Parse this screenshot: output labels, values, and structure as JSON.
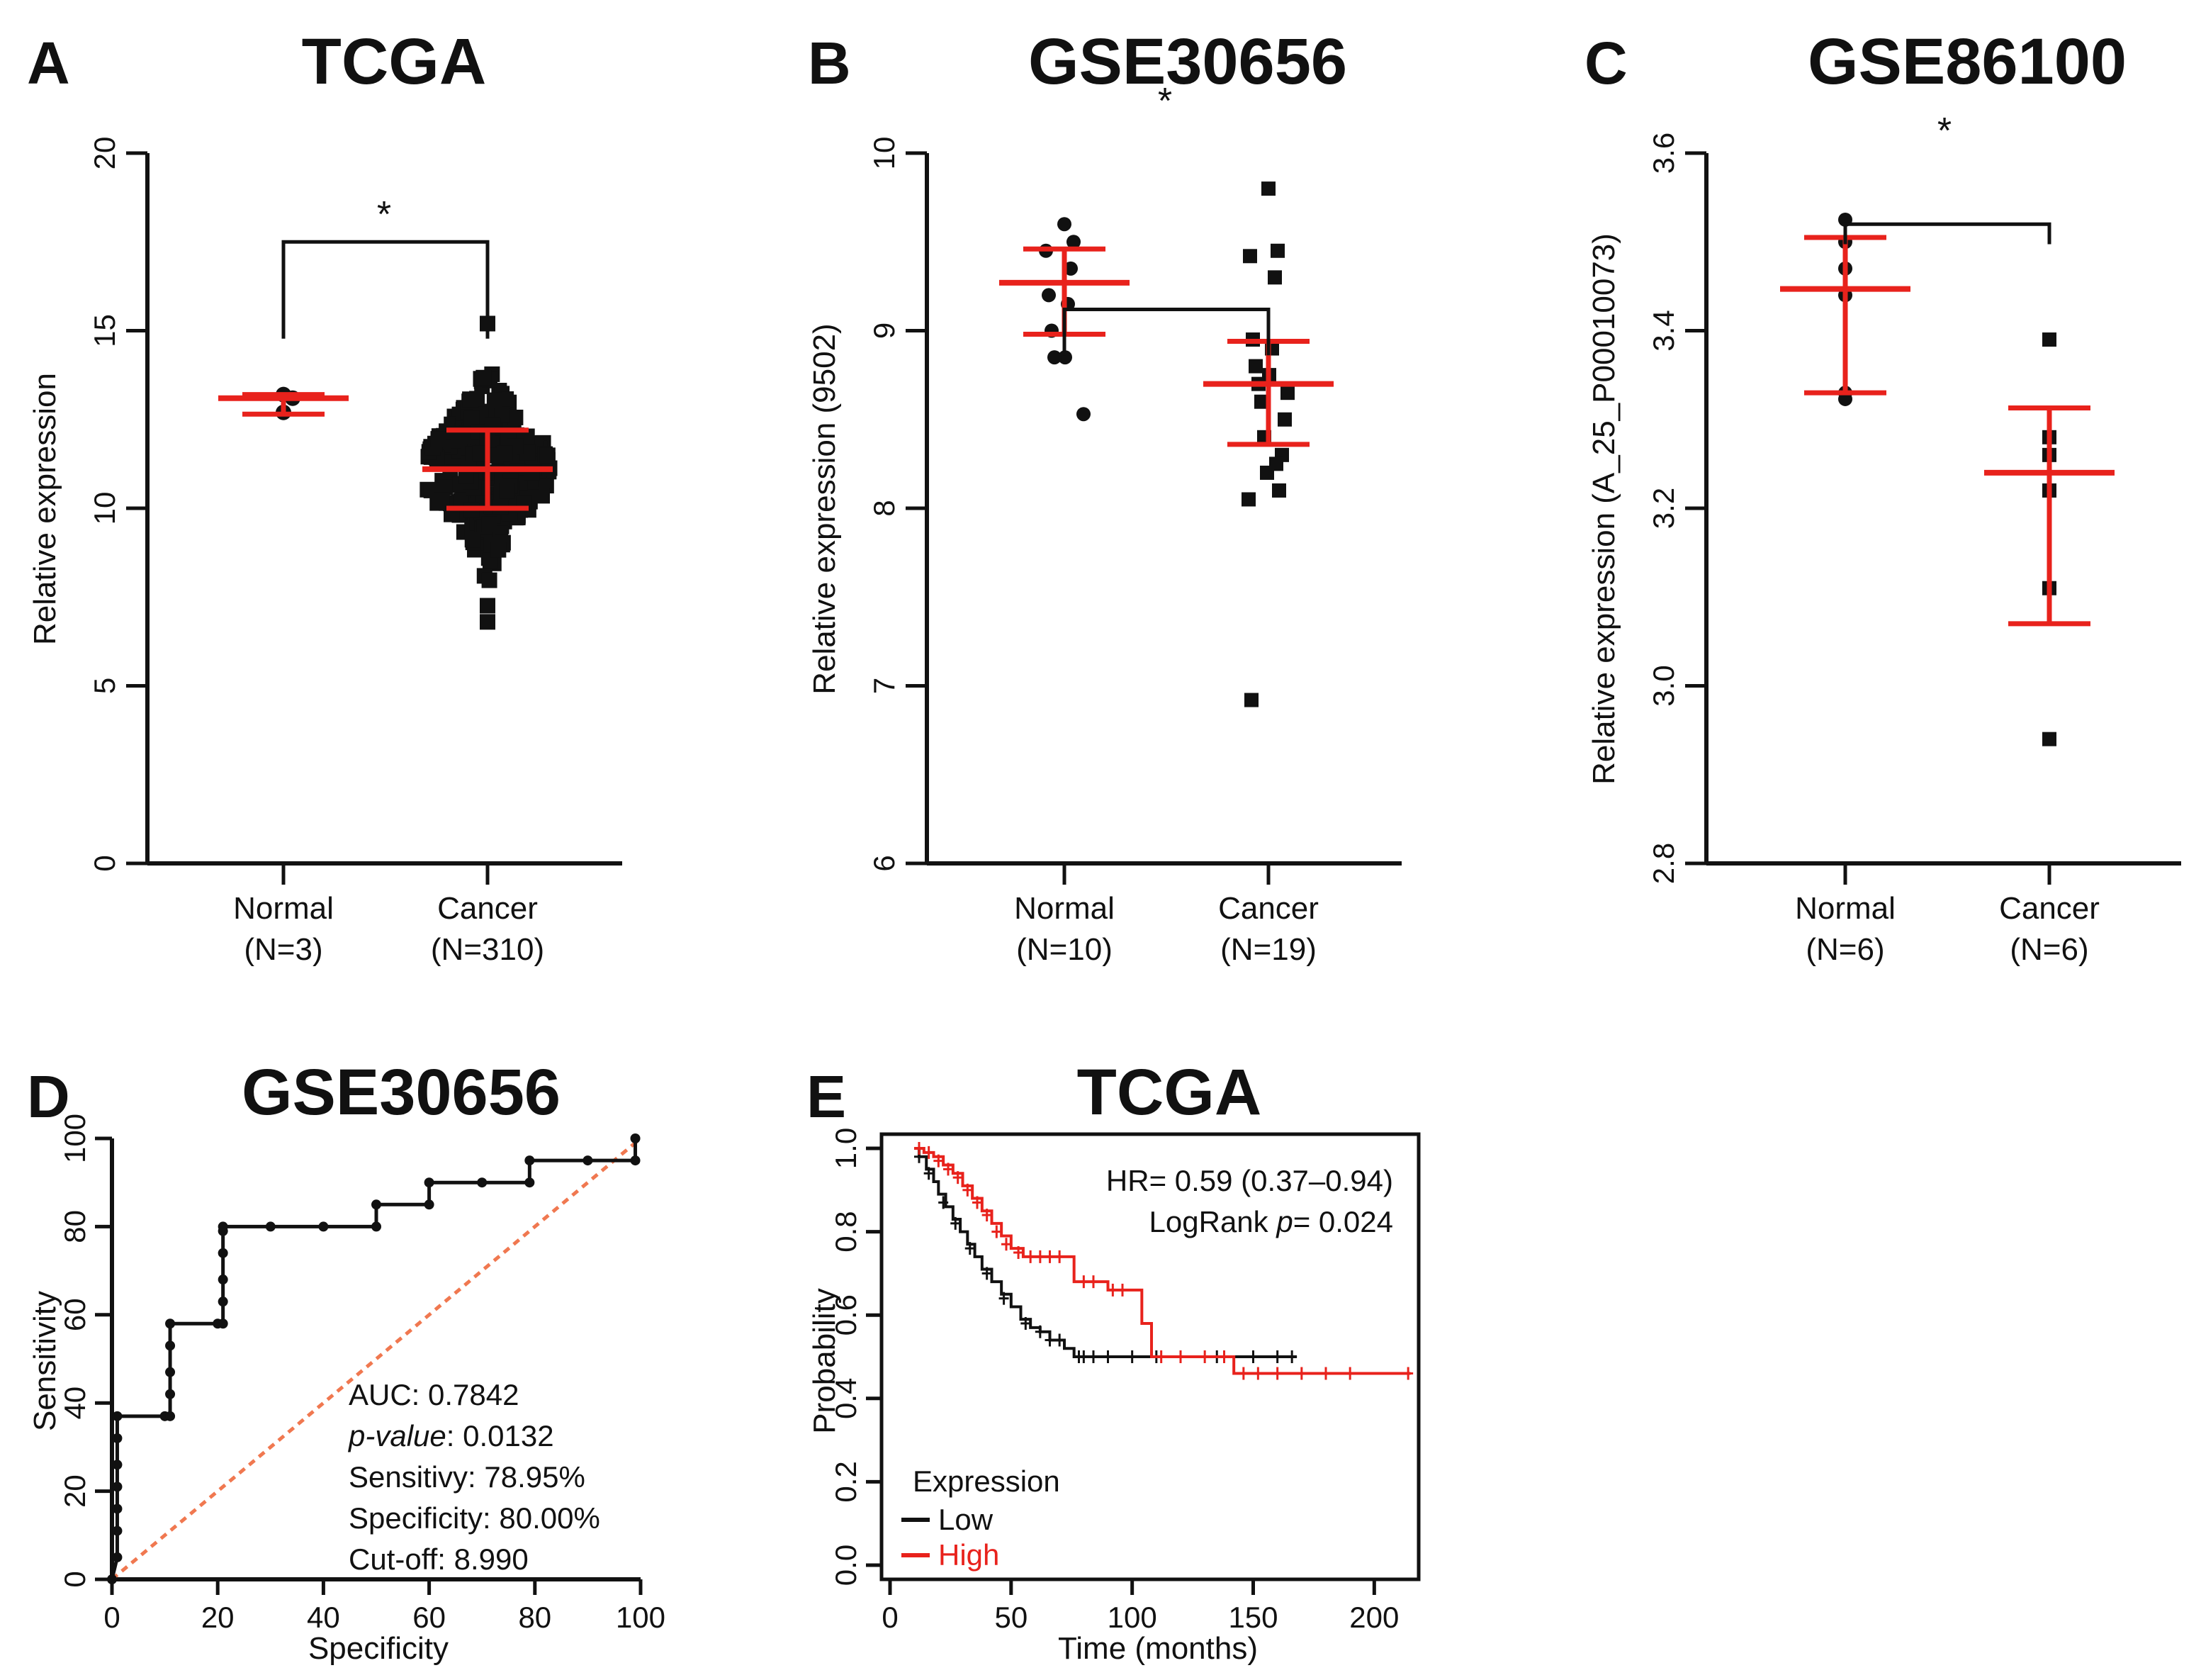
{
  "colors": {
    "black": "#111111",
    "red": "#e8221c",
    "diag": "#f07850"
  },
  "chart_data": [
    {
      "id": "A",
      "type": "scatter",
      "letter": "A",
      "title": "TCGA",
      "ylabel": "Relative expression",
      "ylim": [
        0,
        20
      ],
      "yticks": [
        "0",
        "5",
        "10",
        "15",
        "20"
      ],
      "ytick_values": [
        0,
        5,
        10,
        15,
        20
      ],
      "groups": [
        {
          "label": "Normal",
          "n": "(N=3)",
          "marker": "circle",
          "mean": 13.1,
          "lower": 12.65,
          "upper": 13.2,
          "points": [
            13.2,
            13.1,
            12.7
          ]
        },
        {
          "label": "Cancer",
          "n": "(N=310)",
          "marker": "square",
          "mean": 11.1,
          "lower": 10.0,
          "upper": 12.2,
          "dense": true,
          "n_points": 310,
          "min": 6.8,
          "max": 15.2
        }
      ],
      "significance": "*",
      "sig_level": 17.5
    },
    {
      "id": "B",
      "type": "scatter",
      "letter": "B",
      "title": "GSE30656",
      "ylabel": "Relative expression (9502)",
      "ylim": [
        6,
        10
      ],
      "yticks": [
        "6",
        "7",
        "8",
        "9",
        "10"
      ],
      "ytick_values": [
        6,
        7,
        8,
        9,
        10
      ],
      "groups": [
        {
          "label": "Normal",
          "n": "(N=10)",
          "marker": "circle",
          "mean": 9.27,
          "lower": 8.98,
          "upper": 9.46,
          "points": [
            9.6,
            9.5,
            9.45,
            9.35,
            9.2,
            9.15,
            9.0,
            8.85,
            8.85,
            8.53
          ]
        },
        {
          "label": "Cancer",
          "n": "(N=19)",
          "marker": "square",
          "mean": 8.7,
          "lower": 8.36,
          "upper": 8.94,
          "points": [
            9.8,
            9.45,
            9.42,
            9.3,
            8.95,
            8.9,
            8.8,
            8.75,
            8.7,
            8.65,
            8.6,
            8.5,
            8.4,
            8.3,
            8.2,
            8.1,
            8.05,
            8.25,
            6.92
          ]
        }
      ],
      "significance": "*",
      "sig_level": 9.12
    },
    {
      "id": "C",
      "type": "scatter",
      "letter": "C",
      "title": "GSE86100",
      "ylabel": "Relative expression (A_25_P00010073)",
      "ylim": [
        2.8,
        3.6
      ],
      "yticks": [
        "2.8",
        "3.0",
        "3.2",
        "3.4",
        "3.6"
      ],
      "ytick_values": [
        2.8,
        3.0,
        3.2,
        3.4,
        3.6
      ],
      "groups": [
        {
          "label": "Normal",
          "n": "(N=6)",
          "marker": "circle",
          "mean": 3.447,
          "lower": 3.33,
          "upper": 3.505,
          "points": [
            3.525,
            3.5,
            3.47,
            3.44,
            3.33,
            3.323
          ]
        },
        {
          "label": "Cancer",
          "n": "(N=6)",
          "marker": "square",
          "mean": 3.24,
          "lower": 3.07,
          "upper": 3.313,
          "points": [
            3.39,
            3.28,
            3.26,
            3.22,
            3.11,
            2.94
          ]
        }
      ],
      "significance": "*",
      "sig_level": 3.52
    },
    {
      "id": "D",
      "type": "line",
      "letter": "D",
      "title": "GSE30656",
      "xlabel": "Specificity",
      "ylabel": "Sensitivity",
      "xlim": [
        0,
        100
      ],
      "ylim": [
        0,
        100
      ],
      "xticks": [
        "0",
        "20",
        "40",
        "60",
        "80",
        "100"
      ],
      "xtick_values": [
        0,
        20,
        40,
        60,
        80,
        100
      ],
      "yticks": [
        "0",
        "20",
        "40",
        "60",
        "80",
        "100"
      ],
      "ytick_values": [
        0,
        20,
        40,
        60,
        80,
        100
      ],
      "curve": [
        [
          0,
          0
        ],
        [
          1,
          5
        ],
        [
          1,
          11
        ],
        [
          1,
          16
        ],
        [
          1,
          21
        ],
        [
          1,
          26
        ],
        [
          1,
          32
        ],
        [
          1,
          37
        ],
        [
          10,
          37
        ],
        [
          11,
          37
        ],
        [
          11,
          42
        ],
        [
          11,
          47
        ],
        [
          11,
          53
        ],
        [
          11,
          58
        ],
        [
          20,
          58
        ],
        [
          21,
          58
        ],
        [
          21,
          63
        ],
        [
          21,
          68
        ],
        [
          21,
          74
        ],
        [
          21,
          79
        ],
        [
          21,
          80
        ],
        [
          30,
          80
        ],
        [
          40,
          80
        ],
        [
          50,
          80
        ],
        [
          50,
          85
        ],
        [
          60,
          85
        ],
        [
          60,
          90
        ],
        [
          70,
          90
        ],
        [
          79,
          90
        ],
        [
          79,
          95
        ],
        [
          90,
          95
        ],
        [
          99,
          95
        ],
        [
          99,
          100
        ]
      ],
      "annotations": {
        "auc": "AUC: 0.7842",
        "pvalue_label": "p-value",
        "pvalue": ": 0.0132",
        "sensitivity": "Sensitivy: 78.95%",
        "specificity": "Specificity: 80.00%",
        "cutoff": "Cut-off: 8.990"
      }
    },
    {
      "id": "E",
      "type": "line",
      "letter": "E",
      "title": "TCGA",
      "xlabel": "Time (months)",
      "ylabel": "Probability",
      "xlim": [
        0,
        220
      ],
      "ylim": [
        0,
        1
      ],
      "xticks": [
        "0",
        "50",
        "100",
        "150",
        "200"
      ],
      "xtick_values": [
        0,
        50,
        100,
        150,
        200
      ],
      "yticks": [
        "0.0",
        "0.2",
        "0.4",
        "0.6",
        "0.8",
        "1.0"
      ],
      "ytick_values": [
        0,
        0.2,
        0.4,
        0.6,
        0.8,
        1.0
      ],
      "hr": "HR= 0.59 (0.37–0.94)",
      "logrank_label": "LogRank ",
      "logrank_p": "p",
      "logrank_value": "= 0.024",
      "legend_title": "Expression",
      "series": [
        {
          "name": "Low",
          "color": "#111111",
          "steps": [
            [
              10,
              1.0
            ],
            [
              12,
              0.98
            ],
            [
              15,
              0.95
            ],
            [
              18,
              0.92
            ],
            [
              20,
              0.89
            ],
            [
              23,
              0.86
            ],
            [
              26,
              0.83
            ],
            [
              29,
              0.8
            ],
            [
              32,
              0.77
            ],
            [
              35,
              0.74
            ],
            [
              38,
              0.71
            ],
            [
              42,
              0.68
            ],
            [
              46,
              0.65
            ],
            [
              50,
              0.62
            ],
            [
              54,
              0.59
            ],
            [
              58,
              0.57
            ],
            [
              62,
              0.56
            ],
            [
              66,
              0.54
            ],
            [
              72,
              0.52
            ],
            [
              76,
              0.5
            ],
            [
              168,
              0.5
            ]
          ],
          "censors": [
            [
              12,
              0.98
            ],
            [
              16,
              0.94
            ],
            [
              22,
              0.87
            ],
            [
              27,
              0.82
            ],
            [
              33,
              0.76
            ],
            [
              40,
              0.7
            ],
            [
              47,
              0.64
            ],
            [
              56,
              0.58
            ],
            [
              62,
              0.56
            ],
            [
              66,
              0.54
            ],
            [
              70,
              0.54
            ],
            [
              78,
              0.5
            ],
            [
              80,
              0.5
            ],
            [
              84,
              0.5
            ],
            [
              90,
              0.5
            ],
            [
              100,
              0.5
            ],
            [
              110,
              0.5
            ],
            [
              120,
              0.5
            ],
            [
              135,
              0.5
            ],
            [
              150,
              0.5
            ],
            [
              160,
              0.5
            ],
            [
              166,
              0.5
            ]
          ]
        },
        {
          "name": "High",
          "color": "#e8221c",
          "steps": [
            [
              10,
              1.0
            ],
            [
              14,
              0.99
            ],
            [
              18,
              0.98
            ],
            [
              22,
              0.96
            ],
            [
              26,
              0.94
            ],
            [
              30,
              0.91
            ],
            [
              34,
              0.88
            ],
            [
              38,
              0.85
            ],
            [
              42,
              0.82
            ],
            [
              46,
              0.79
            ],
            [
              50,
              0.76
            ],
            [
              55,
              0.74
            ],
            [
              74,
              0.74
            ],
            [
              76,
              0.68
            ],
            [
              88,
              0.68
            ],
            [
              90,
              0.66
            ],
            [
              100,
              0.66
            ],
            [
              104,
              0.58
            ],
            [
              108,
              0.5
            ],
            [
              140,
              0.5
            ],
            [
              142,
              0.46
            ],
            [
              215,
              0.46
            ]
          ],
          "censors": [
            [
              12,
              1.0
            ],
            [
              16,
              0.99
            ],
            [
              20,
              0.97
            ],
            [
              24,
              0.95
            ],
            [
              28,
              0.93
            ],
            [
              32,
              0.9
            ],
            [
              36,
              0.87
            ],
            [
              40,
              0.84
            ],
            [
              44,
              0.8
            ],
            [
              48,
              0.77
            ],
            [
              53,
              0.75
            ],
            [
              58,
              0.74
            ],
            [
              62,
              0.74
            ],
            [
              66,
              0.74
            ],
            [
              70,
              0.74
            ],
            [
              80,
              0.68
            ],
            [
              84,
              0.68
            ],
            [
              92,
              0.66
            ],
            [
              96,
              0.66
            ],
            [
              112,
              0.5
            ],
            [
              120,
              0.5
            ],
            [
              130,
              0.5
            ],
            [
              138,
              0.5
            ],
            [
              146,
              0.46
            ],
            [
              152,
              0.46
            ],
            [
              160,
              0.46
            ],
            [
              170,
              0.46
            ],
            [
              180,
              0.46
            ],
            [
              190,
              0.46
            ],
            [
              214,
              0.46
            ]
          ]
        }
      ]
    }
  ]
}
